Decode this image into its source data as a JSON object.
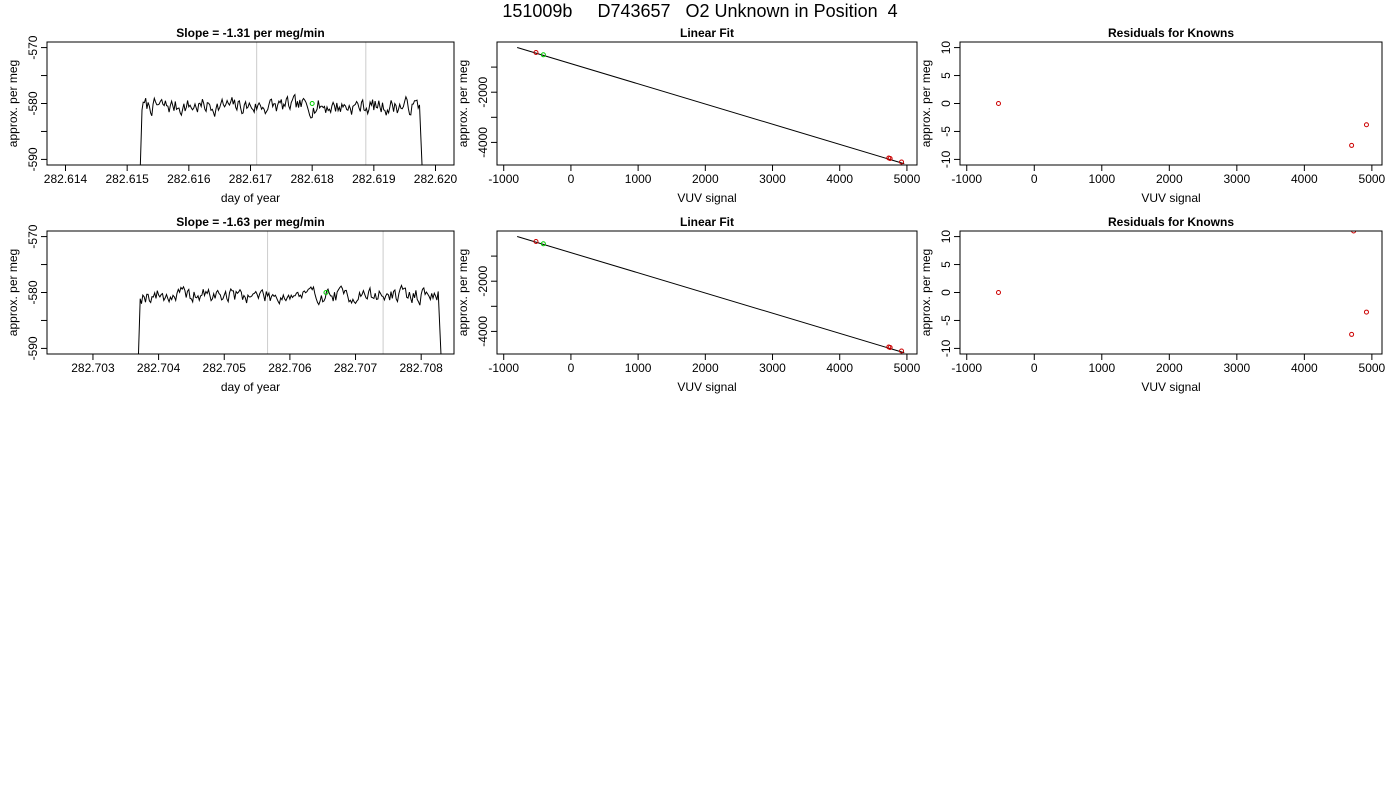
{
  "page_title": "151009b     D743657   O2 Unknown in Position  4",
  "colors": {
    "trace": "#000000",
    "frame": "#000000",
    "marker_line": "#cccccc",
    "known_point": "#cc0000",
    "unknown_point": "#00cc00"
  },
  "chart_data": [
    {
      "type": "line",
      "title": "Slope =  -1.31  per meg/min",
      "xlabel": "day of year",
      "ylabel": "approx. per meg",
      "xlim": [
        282.6137,
        282.6203
      ],
      "ylim": [
        -591,
        -569
      ],
      "x_ticks": [
        282.614,
        282.615,
        282.616,
        282.617,
        282.618,
        282.619,
        282.62
      ],
      "x_tick_labels": [
        "282.614",
        "282.615",
        "282.616",
        "282.617",
        "282.618",
        "282.619",
        "282.620"
      ],
      "y_ticks": [
        -590,
        -585,
        -580,
        -575,
        -570
      ],
      "y_tick_labels": [
        "-590",
        "",
        "-580",
        "",
        "-570"
      ],
      "vlines": [
        282.6171,
        282.61887
      ],
      "trace_start": 282.6152,
      "trace_end": 282.6198,
      "trace_mean": -580.5,
      "trace_amp": 2.6,
      "trace_seed": 7,
      "trace_step": 2e-05,
      "unknown_point": {
        "x": 282.618,
        "y": -580
      }
    },
    {
      "type": "scatter",
      "title": "Linear Fit",
      "xlabel": "VUV signal",
      "ylabel": "approx. per meg",
      "xlim": [
        -1100,
        5150
      ],
      "ylim": [
        -4900,
        0
      ],
      "x_ticks": [
        -1000,
        0,
        1000,
        2000,
        3000,
        4000,
        5000
      ],
      "x_tick_labels": [
        "-1000",
        "0",
        "1000",
        "2000",
        "3000",
        "4000",
        "5000"
      ],
      "y_ticks": [
        -4000,
        -3000,
        -2000,
        -1000
      ],
      "y_tick_labels": [
        "-4000",
        "",
        "-2000",
        ""
      ],
      "fit_line": {
        "x": [
          -800,
          4960
        ],
        "y": [
          -220,
          -4850
        ]
      },
      "known_points": {
        "x": [
          -520,
          4730,
          4750,
          4920
        ],
        "y": [
          -420,
          -4620,
          -4640,
          -4780
        ]
      },
      "unknown_points": {
        "x": [
          -410
        ],
        "y": [
          -510
        ]
      }
    },
    {
      "type": "scatter",
      "title": "Residuals for Knowns",
      "xlabel": "VUV signal",
      "ylabel": "approx. per meg",
      "xlim": [
        -1100,
        5150
      ],
      "ylim": [
        -11,
        11
      ],
      "x_ticks": [
        -1000,
        0,
        1000,
        2000,
        3000,
        4000,
        5000
      ],
      "x_tick_labels": [
        "-1000",
        "0",
        "1000",
        "2000",
        "3000",
        "4000",
        "5000"
      ],
      "y_ticks": [
        -10,
        -5,
        0,
        5,
        10
      ],
      "y_tick_labels": [
        "-10",
        "-5",
        "0",
        "5",
        "10"
      ],
      "known_points": {
        "x": [
          -530,
          4700,
          4920
        ],
        "y": [
          0,
          -7.5,
          -3.8
        ]
      }
    },
    {
      "type": "line",
      "title": "Slope =  -1.63  per meg/min",
      "xlabel": "day of year",
      "ylabel": "approx. per meg",
      "xlim": [
        282.7023,
        282.7085
      ],
      "ylim": [
        -591,
        -569
      ],
      "x_ticks": [
        282.703,
        282.704,
        282.705,
        282.706,
        282.707,
        282.708
      ],
      "x_tick_labels": [
        "282.703",
        "282.704",
        "282.705",
        "282.706",
        "282.707",
        "282.708"
      ],
      "y_ticks": [
        -590,
        -585,
        -580,
        -575,
        -570
      ],
      "y_tick_labels": [
        "-590",
        "",
        "-580",
        "",
        "-570"
      ],
      "vlines": [
        282.70566,
        282.70742
      ],
      "trace_start": 282.70368,
      "trace_end": 282.70832,
      "trace_mean": -580.5,
      "trace_amp": 2.4,
      "trace_seed": 19,
      "trace_step": 2e-05,
      "unknown_point": {
        "x": 282.70655,
        "y": -580
      }
    },
    {
      "type": "scatter",
      "title": "Linear Fit",
      "xlabel": "VUV signal",
      "ylabel": "approx. per meg",
      "xlim": [
        -1100,
        5150
      ],
      "ylim": [
        -4900,
        0
      ],
      "x_ticks": [
        -1000,
        0,
        1000,
        2000,
        3000,
        4000,
        5000
      ],
      "x_tick_labels": [
        "-1000",
        "0",
        "1000",
        "2000",
        "3000",
        "4000",
        "5000"
      ],
      "y_ticks": [
        -4000,
        -3000,
        -2000,
        -1000
      ],
      "y_tick_labels": [
        "-4000",
        "",
        "-2000",
        ""
      ],
      "fit_line": {
        "x": [
          -800,
          4960
        ],
        "y": [
          -220,
          -4850
        ]
      },
      "known_points": {
        "x": [
          -520,
          4730,
          4750,
          4920
        ],
        "y": [
          -420,
          -4620,
          -4640,
          -4780
        ]
      },
      "unknown_points": {
        "x": [
          -410
        ],
        "y": [
          -510
        ]
      }
    },
    {
      "type": "scatter",
      "title": "Residuals for Knowns",
      "xlabel": "VUV signal",
      "ylabel": "approx. per meg",
      "xlim": [
        -1100,
        5150
      ],
      "ylim": [
        -11,
        11
      ],
      "x_ticks": [
        -1000,
        0,
        1000,
        2000,
        3000,
        4000,
        5000
      ],
      "x_tick_labels": [
        "-1000",
        "0",
        "1000",
        "2000",
        "3000",
        "4000",
        "5000"
      ],
      "y_ticks": [
        -10,
        -5,
        0,
        5,
        10
      ],
      "y_tick_labels": [
        "-10",
        "-5",
        "0",
        "5",
        "10"
      ],
      "known_points": {
        "x": [
          -530,
          4700,
          4920,
          4730
        ],
        "y": [
          0,
          -7.5,
          -3.5,
          11
        ]
      }
    }
  ]
}
